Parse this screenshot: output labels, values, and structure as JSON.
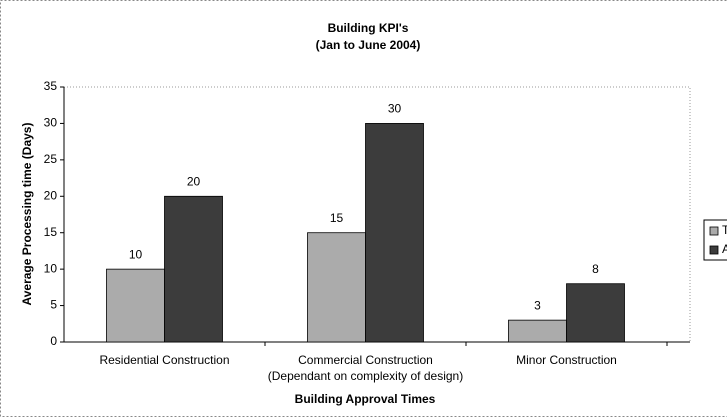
{
  "chart_data": {
    "type": "bar",
    "title": "Building KPI's",
    "subtitle": "(Jan to June 2004)",
    "x_label": "Building Approval Times",
    "y_label": "Average Processing time (Days)",
    "categories": [
      "Residential Construction",
      "Commercial Construction (Dependant on complexity of design)",
      "Minor Construction"
    ],
    "series": [
      {
        "name": "Target",
        "color": "#ababab",
        "values": [
          10,
          15,
          3
        ]
      },
      {
        "name": "Actual",
        "color": "#3c3c3c",
        "values": [
          20,
          30,
          8
        ]
      }
    ],
    "ylim": [
      0,
      35
    ],
    "yticks": [
      0,
      5,
      10,
      15,
      20,
      25,
      30,
      35
    ],
    "grid": false,
    "legend": "right"
  }
}
